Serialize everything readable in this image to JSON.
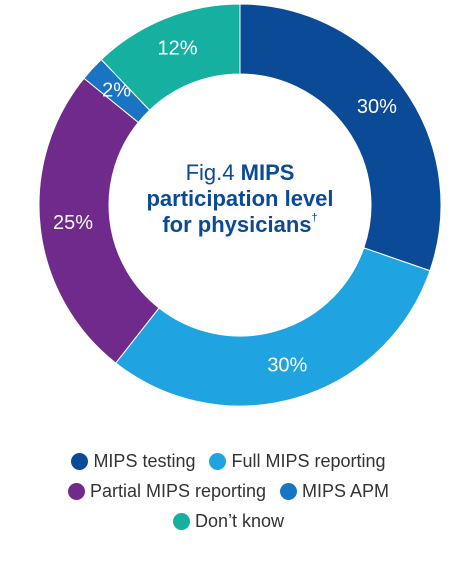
{
  "chart_data": {
    "type": "donut",
    "title_prefix": "Fig.4",
    "title": "MIPS participation level for physicians",
    "title_note": "†",
    "categories": [
      "MIPS testing",
      "Full MIPS reporting",
      "Partial MIPS reporting",
      "MIPS APM",
      "Don’t know"
    ],
    "values": [
      30,
      30,
      25,
      2,
      12
    ],
    "value_labels": [
      "30%",
      "30%",
      "25%",
      "2%",
      "12%"
    ],
    "colors": [
      "#0b4a97",
      "#1fa3e1",
      "#6f2a8b",
      "#1a74c4",
      "#16b0a1"
    ],
    "legend": "bottom"
  }
}
